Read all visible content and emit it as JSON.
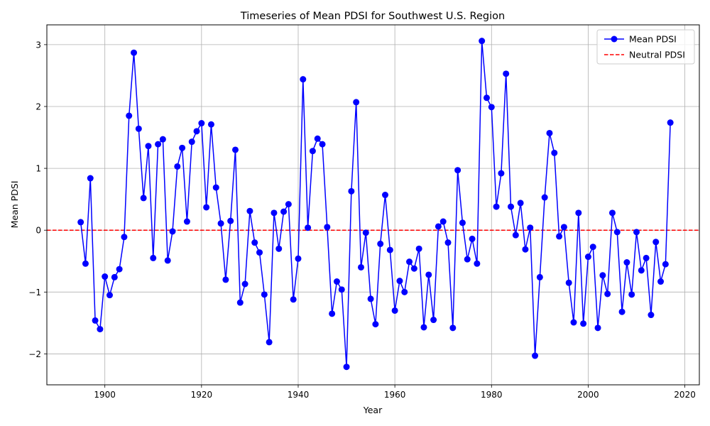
{
  "chart_data": {
    "type": "line",
    "title": "Timeseries of Mean PDSI for Southwest U.S. Region",
    "xlabel": "Year",
    "ylabel": "Mean PDSI",
    "xlim": [
      1888,
      2023
    ],
    "ylim": [
      -2.5,
      3.32
    ],
    "x_ticks": [
      1900,
      1920,
      1940,
      1960,
      1980,
      2000,
      2020
    ],
    "y_ticks": [
      -2,
      -1,
      0,
      1,
      2,
      3
    ],
    "grid": true,
    "legend_position": "top-right",
    "series": [
      {
        "name": "Mean PDSI",
        "color": "#0000ff",
        "marker": "circle",
        "x": [
          1895,
          1896,
          1897,
          1898,
          1899,
          1900,
          1901,
          1902,
          1903,
          1904,
          1905,
          1906,
          1907,
          1908,
          1909,
          1910,
          1911,
          1912,
          1913,
          1914,
          1915,
          1916,
          1917,
          1918,
          1919,
          1920,
          1921,
          1922,
          1923,
          1924,
          1925,
          1926,
          1927,
          1928,
          1929,
          1930,
          1931,
          1932,
          1933,
          1934,
          1935,
          1936,
          1937,
          1938,
          1939,
          1940,
          1941,
          1942,
          1943,
          1944,
          1945,
          1946,
          1947,
          1948,
          1949,
          1950,
          1951,
          1952,
          1953,
          1954,
          1955,
          1956,
          1957,
          1958,
          1959,
          1960,
          1961,
          1962,
          1963,
          1964,
          1965,
          1966,
          1967,
          1968,
          1969,
          1970,
          1971,
          1972,
          1973,
          1974,
          1975,
          1976,
          1977,
          1978,
          1979,
          1980,
          1981,
          1982,
          1983,
          1984,
          1985,
          1986,
          1987,
          1988,
          1989,
          1990,
          1991,
          1992,
          1993,
          1994,
          1995,
          1996,
          1997,
          1998,
          1999,
          2000,
          2001,
          2002,
          2003,
          2004,
          2005,
          2006,
          2007,
          2008,
          2009,
          2010,
          2011,
          2012,
          2013,
          2014,
          2015,
          2016,
          2017
        ],
        "y": [
          0.13,
          -0.54,
          0.84,
          -1.46,
          -1.6,
          -0.75,
          -1.05,
          -0.76,
          -0.63,
          -0.11,
          1.85,
          2.87,
          1.64,
          0.52,
          1.36,
          -0.45,
          1.39,
          1.47,
          -0.49,
          -0.02,
          1.03,
          1.33,
          0.14,
          1.43,
          1.6,
          1.73,
          0.37,
          1.71,
          0.69,
          0.11,
          -0.8,
          0.15,
          1.3,
          -1.17,
          -0.87,
          0.31,
          -0.2,
          -0.36,
          -1.04,
          -1.81,
          0.28,
          -0.3,
          0.3,
          0.42,
          -1.12,
          -0.46,
          2.44,
          0.04,
          1.28,
          1.48,
          1.39,
          0.05,
          -1.35,
          -0.83,
          -0.96,
          -2.21,
          0.63,
          2.07,
          -0.6,
          -0.04,
          -1.11,
          -1.52,
          -0.22,
          0.57,
          -0.32,
          -1.3,
          -0.82,
          -1.0,
          -0.51,
          -0.62,
          -0.3,
          -1.57,
          -0.72,
          -1.45,
          0.06,
          0.14,
          -0.2,
          -1.58,
          0.97,
          0.12,
          -0.47,
          -0.14,
          -0.54,
          3.06,
          2.14,
          1.99,
          0.38,
          0.92,
          2.53,
          0.38,
          -0.08,
          0.44,
          -0.31,
          0.04,
          -2.03,
          -0.76,
          0.53,
          1.57,
          1.25,
          -0.1,
          0.05,
          -0.85,
          -1.49,
          0.28,
          -1.51,
          -0.43,
          -0.27,
          -1.58,
          -0.73,
          -1.03,
          0.28,
          -0.03,
          -1.32,
          -0.52,
          -1.04,
          -0.03,
          -0.65,
          -0.45,
          -1.37,
          -0.19,
          -0.83,
          -0.55,
          1.74
        ]
      },
      {
        "name": "Neutral PDSI",
        "color": "#ff0000",
        "style": "dashed",
        "y_constant": 0
      }
    ]
  }
}
